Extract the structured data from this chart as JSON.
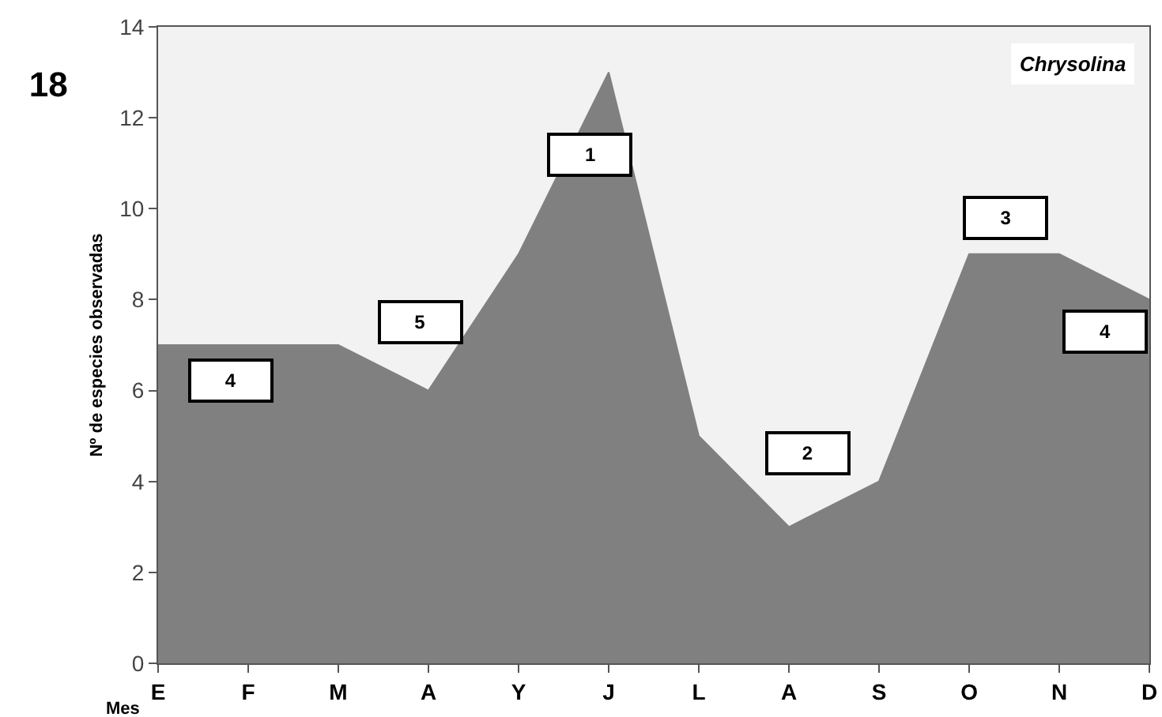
{
  "chart_data": {
    "type": "area",
    "title": "18",
    "subtitle": "Chrysolina",
    "xlabel": "Mes",
    "ylabel": "Nº de especies observadas",
    "categories": [
      "E",
      "F",
      "M",
      "A",
      "Y",
      "J",
      "L",
      "A",
      "S",
      "O",
      "N",
      "D"
    ],
    "series": [
      {
        "color": "#808080",
        "values": [
          7,
          7,
          7,
          6,
          9,
          13,
          5,
          3,
          4,
          9,
          9,
          8
        ]
      }
    ],
    "ylim": [
      0,
      14
    ],
    "yticks": [
      0,
      2,
      4,
      6,
      8,
      10,
      12,
      14
    ],
    "grid": false,
    "annotations": [
      "4",
      "5",
      "1",
      "2",
      "3",
      "4"
    ]
  }
}
